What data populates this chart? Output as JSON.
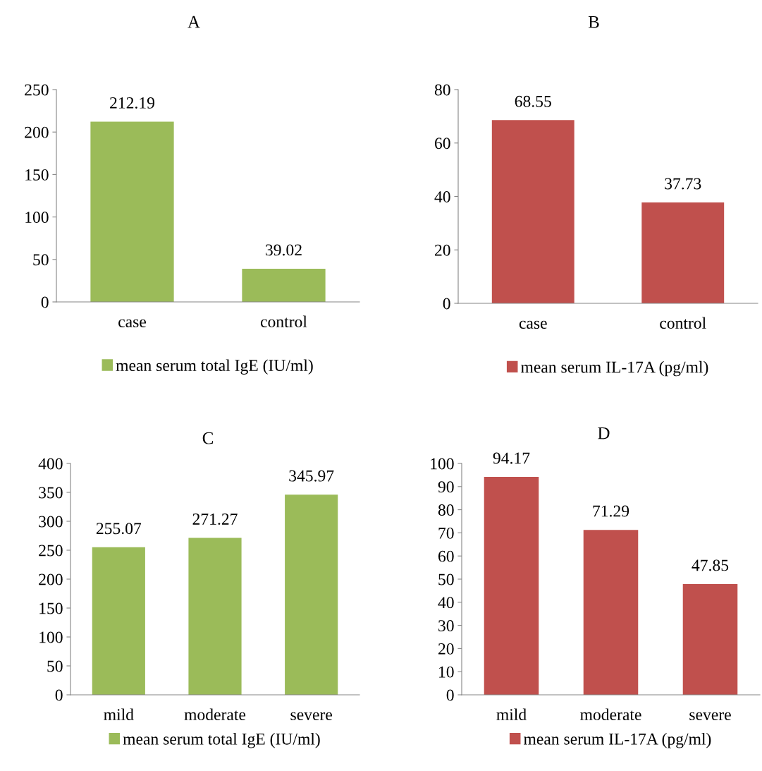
{
  "chart_data": [
    {
      "type": "bar",
      "title": "A",
      "categories": [
        "case",
        "control"
      ],
      "series": [
        {
          "name": "mean serum total IgE (IU/ml)",
          "color": "#9bbb59",
          "values": [
            212.19,
            39.02
          ]
        }
      ],
      "ylim": [
        0,
        250
      ],
      "yticks": [
        0,
        50,
        100,
        150,
        200,
        250
      ],
      "data_labels": true,
      "legend": "bottom",
      "grid": false
    },
    {
      "type": "bar",
      "title": "B",
      "categories": [
        "case",
        "control"
      ],
      "series": [
        {
          "name": "mean serum IL-17A (pg/ml)",
          "color": "#c0504d",
          "values": [
            68.55,
            37.73
          ]
        }
      ],
      "ylim": [
        0,
        80
      ],
      "yticks": [
        0,
        20,
        40,
        60,
        80
      ],
      "data_labels": true,
      "legend": "bottom",
      "grid": false
    },
    {
      "type": "bar",
      "title": "C",
      "categories": [
        "mild",
        "moderate",
        "severe"
      ],
      "series": [
        {
          "name": "mean serum total IgE (IU/ml)",
          "color": "#9bbb59",
          "values": [
            255.07,
            271.27,
            345.97
          ]
        }
      ],
      "ylim": [
        0,
        400
      ],
      "yticks": [
        0,
        50,
        100,
        150,
        200,
        250,
        300,
        350,
        400
      ],
      "data_labels": true,
      "legend": "bottom",
      "grid": false
    },
    {
      "type": "bar",
      "title": "D",
      "categories": [
        "mild",
        "moderate",
        "severe"
      ],
      "series": [
        {
          "name": "mean serum IL-17A (pg/ml)",
          "color": "#c0504d",
          "values": [
            94.17,
            71.29,
            47.85
          ]
        }
      ],
      "ylim": [
        0,
        100
      ],
      "yticks": [
        0,
        10,
        20,
        30,
        40,
        50,
        60,
        70,
        80,
        90,
        100
      ],
      "data_labels": true,
      "legend": "bottom",
      "grid": false
    }
  ]
}
